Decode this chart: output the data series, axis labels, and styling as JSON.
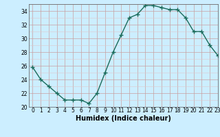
{
  "x": [
    0,
    1,
    2,
    3,
    4,
    5,
    6,
    7,
    8,
    9,
    10,
    11,
    12,
    13,
    14,
    15,
    16,
    17,
    18,
    19,
    20,
    21,
    22,
    23
  ],
  "y": [
    25.8,
    24.0,
    23.0,
    22.0,
    21.0,
    21.0,
    21.0,
    20.5,
    22.0,
    25.0,
    28.0,
    30.5,
    33.0,
    33.5,
    34.8,
    34.8,
    34.5,
    34.2,
    34.2,
    33.0,
    31.0,
    31.0,
    29.0,
    27.5
  ],
  "xlabel": "Humidex (Indice chaleur)",
  "ylim": [
    20,
    35
  ],
  "xlim": [
    -0.5,
    23
  ],
  "yticks": [
    20,
    22,
    24,
    26,
    28,
    30,
    32,
    34
  ],
  "xticks": [
    0,
    1,
    2,
    3,
    4,
    5,
    6,
    7,
    8,
    9,
    10,
    11,
    12,
    13,
    14,
    15,
    16,
    17,
    18,
    19,
    20,
    21,
    22,
    23
  ],
  "line_color": "#1a6b5a",
  "marker": "+",
  "marker_size": 4,
  "bg_color": "#cceeff",
  "grid_major_color": "#c8a0a0",
  "grid_minor_color": "#ddc8c8",
  "xlabel_fontsize": 7,
  "tick_fontsize": 5.5
}
